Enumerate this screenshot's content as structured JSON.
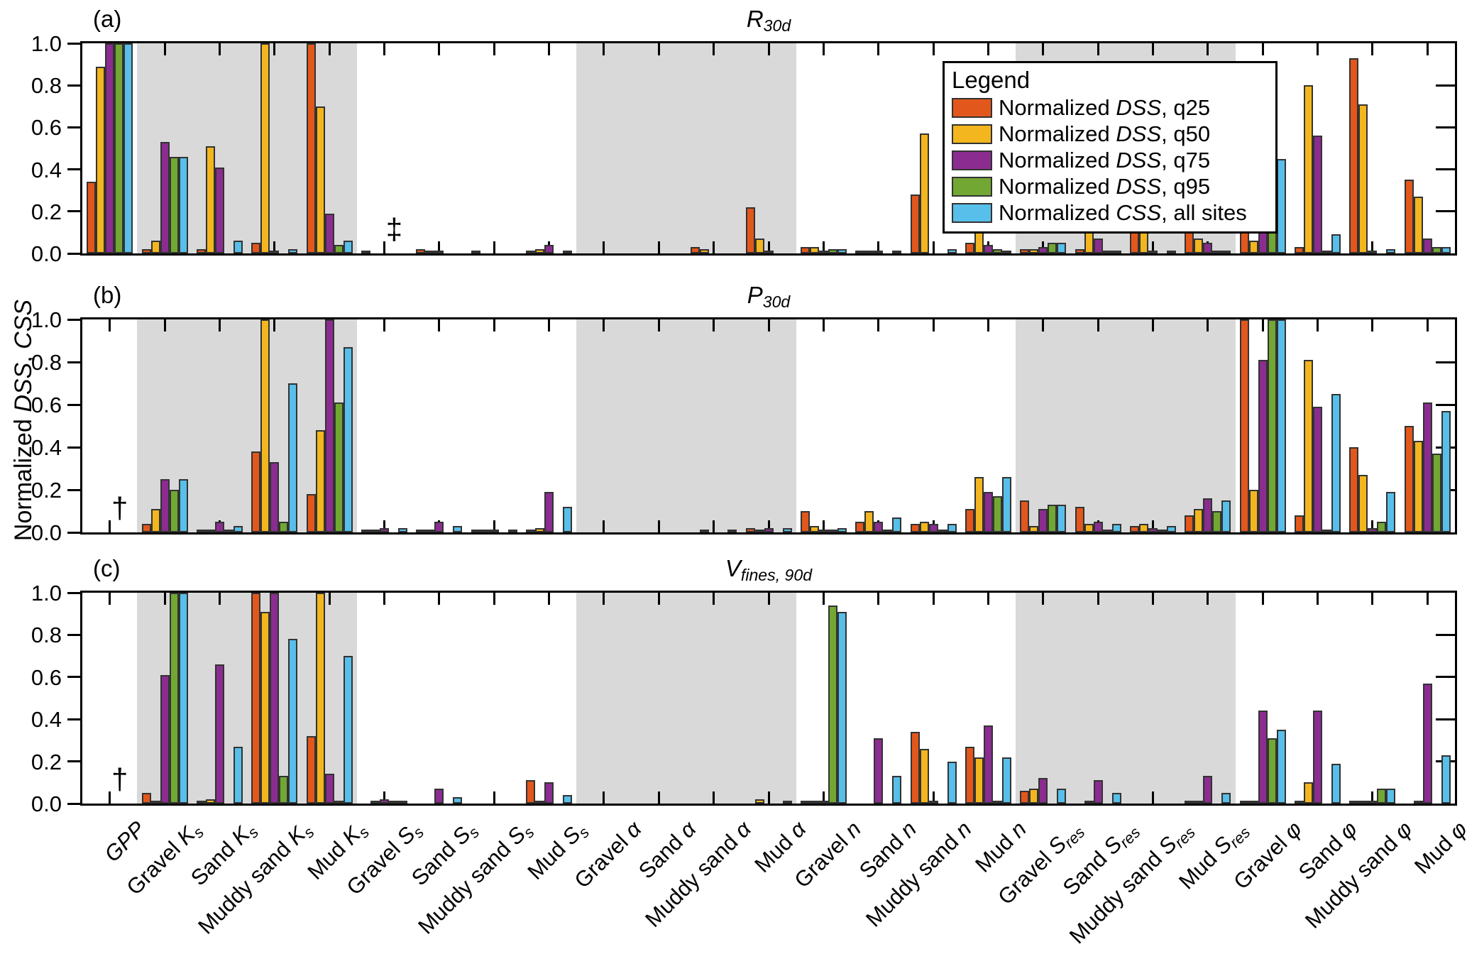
{
  "legend": {
    "title": "Legend"
  },
  "chart_data": {
    "type": "bar",
    "ylabel_parts": [
      {
        "text": "Normalized ",
        "italic": false
      },
      {
        "text": "DSS",
        "italic": true
      },
      {
        "text": ", ",
        "italic": false
      },
      {
        "text": "CSS",
        "italic": true
      }
    ],
    "ylim": [
      0,
      1
    ],
    "yticks": [
      0,
      0.2,
      0.4,
      0.6,
      0.8,
      1.0
    ],
    "ytick_labels": [
      "0.0",
      "0.2",
      "0.4",
      "0.6",
      "0.8",
      "1.0"
    ],
    "grid": false,
    "legend_position": "upper right inside panel (a)",
    "categories": [
      {
        "prefix": "",
        "symbol": "GPP",
        "subscript": ""
      },
      {
        "prefix": "Gravel ",
        "symbol": "K",
        "subscript": "s"
      },
      {
        "prefix": "Sand ",
        "symbol": "K",
        "subscript": "s"
      },
      {
        "prefix": "Muddy sand ",
        "symbol": "K",
        "subscript": "s"
      },
      {
        "prefix": "Mud ",
        "symbol": "K",
        "subscript": "s"
      },
      {
        "prefix": "Gravel ",
        "symbol": "S",
        "subscript": "s"
      },
      {
        "prefix": "Sand ",
        "symbol": "S",
        "subscript": "s"
      },
      {
        "prefix": "Muddy sand ",
        "symbol": "S",
        "subscript": "s"
      },
      {
        "prefix": "Mud ",
        "symbol": "S",
        "subscript": "s"
      },
      {
        "prefix": "Gravel ",
        "symbol": "α",
        "subscript": ""
      },
      {
        "prefix": "Sand ",
        "symbol": "α",
        "subscript": ""
      },
      {
        "prefix": "Muddy sand ",
        "symbol": "α",
        "subscript": ""
      },
      {
        "prefix": "Mud ",
        "symbol": "α",
        "subscript": ""
      },
      {
        "prefix": "Gravel ",
        "symbol": "n",
        "subscript": ""
      },
      {
        "prefix": "Sand ",
        "symbol": "n",
        "subscript": ""
      },
      {
        "prefix": "Muddy sand ",
        "symbol": "n",
        "subscript": ""
      },
      {
        "prefix": "Mud ",
        "symbol": "n",
        "subscript": ""
      },
      {
        "prefix": "Gravel ",
        "symbol": "S",
        "subscript": "res"
      },
      {
        "prefix": "Sand ",
        "symbol": "S",
        "subscript": "res"
      },
      {
        "prefix": "Muddy sand ",
        "symbol": "S",
        "subscript": "res"
      },
      {
        "prefix": "Mud ",
        "symbol": "S",
        "subscript": "res"
      },
      {
        "prefix": "Gravel ",
        "symbol": "φ",
        "subscript": ""
      },
      {
        "prefix": "Sand ",
        "symbol": "φ",
        "subscript": ""
      },
      {
        "prefix": "Muddy sand ",
        "symbol": "φ",
        "subscript": ""
      },
      {
        "prefix": "Mud ",
        "symbol": "φ",
        "subscript": ""
      }
    ],
    "shaded_category_ranges": [
      [
        1,
        4
      ],
      [
        9,
        12
      ],
      [
        17,
        20
      ]
    ],
    "series_defs": [
      {
        "key": "q25",
        "color": "#E2571B",
        "legend_prefix": "Normalized ",
        "legend_symbol": "DSS",
        "legend_suffix": ", q25"
      },
      {
        "key": "q50",
        "color": "#F3B61E",
        "legend_prefix": "Normalized ",
        "legend_symbol": "DSS",
        "legend_suffix": ", q50"
      },
      {
        "key": "q75",
        "color": "#8B2C90",
        "legend_prefix": "Normalized ",
        "legend_symbol": "DSS",
        "legend_suffix": ", q75"
      },
      {
        "key": "q95",
        "color": "#72A733",
        "legend_prefix": "Normalized ",
        "legend_symbol": "DSS",
        "legend_suffix": ", q95"
      },
      {
        "key": "css",
        "color": "#57BFE9",
        "legend_prefix": "Normalized ",
        "legend_symbol": "CSS",
        "legend_suffix": ", all sites"
      }
    ],
    "panels": [
      {
        "label": "(a)",
        "title": {
          "symbol": "R",
          "subscript": "30d"
        },
        "annotations": [
          {
            "category": 5,
            "text": "‡"
          }
        ],
        "series": {
          "q25": [
            0.34,
            0.02,
            0.02,
            0.05,
            1.0,
            0.01,
            0.02,
            0.01,
            0.01,
            0,
            0,
            0.03,
            0.22,
            0.03,
            0.01,
            0.28,
            0.05,
            0.02,
            0.02,
            0.11,
            0.1,
            0.15,
            0.03,
            0.93,
            0.35
          ],
          "q50": [
            0.89,
            0.06,
            0.51,
            1.0,
            0.7,
            0,
            0.01,
            0,
            0.02,
            0,
            0,
            0.02,
            0.07,
            0.03,
            0.01,
            0.57,
            0.12,
            0.02,
            0.1,
            0.11,
            0.07,
            0.06,
            0.8,
            0.71,
            0.27
          ],
          "q75": [
            1.0,
            0.53,
            0.41,
            0.01,
            0.19,
            0,
            0.01,
            0,
            0.04,
            0,
            0,
            0,
            0.01,
            0.01,
            0.01,
            0,
            0.04,
            0.03,
            0.07,
            0.01,
            0.05,
            0.22,
            0.56,
            0.01,
            0.07
          ],
          "q95": [
            1.0,
            0.46,
            0,
            0,
            0.04,
            0,
            0,
            0,
            0,
            0,
            0,
            0,
            0,
            0.02,
            0,
            0,
            0.02,
            0.05,
            0.01,
            0,
            0.01,
            0.46,
            0.01,
            0,
            0.03
          ],
          "css": [
            1.0,
            0.46,
            0.06,
            0.02,
            0.06,
            0,
            0,
            0,
            0.01,
            0,
            0,
            0,
            0,
            0.02,
            0.01,
            0.02,
            0.01,
            0.05,
            0.01,
            0.01,
            0.01,
            0.45,
            0.09,
            0.02,
            0.03
          ]
        }
      },
      {
        "label": "(b)",
        "title": {
          "symbol": "P",
          "subscript": "30d"
        },
        "annotations": [
          {
            "category": 0,
            "text": "†"
          }
        ],
        "series": {
          "q25": [
            0,
            0.04,
            0.01,
            0.38,
            0.18,
            0.01,
            0.01,
            0.01,
            0.01,
            0,
            0,
            0,
            0.02,
            0.1,
            0.05,
            0.04,
            0.11,
            0.15,
            0.12,
            0.03,
            0.08,
            1.0,
            0.08,
            0.4,
            0.5
          ],
          "q50": [
            0,
            0.11,
            0.01,
            1.0,
            0.48,
            0.01,
            0.01,
            0.01,
            0.02,
            0,
            0,
            0.01,
            0.01,
            0.03,
            0.1,
            0.05,
            0.26,
            0.03,
            0.04,
            0.04,
            0.11,
            0.2,
            0.81,
            0.27,
            0.43
          ],
          "q75": [
            0,
            0.25,
            0.05,
            0.33,
            1.0,
            0.02,
            0.05,
            0.01,
            0.19,
            0,
            0,
            0,
            0.02,
            0.01,
            0.05,
            0.04,
            0.19,
            0.11,
            0.05,
            0.02,
            0.16,
            0.81,
            0.59,
            0.02,
            0.61
          ],
          "q95": [
            0,
            0.2,
            0.01,
            0.05,
            0.61,
            0,
            0,
            0,
            0,
            0,
            0,
            0,
            0,
            0.01,
            0.01,
            0.01,
            0.17,
            0.13,
            0.01,
            0.01,
            0.1,
            1.0,
            0.01,
            0.05,
            0.37
          ],
          "css": [
            0,
            0.25,
            0.03,
            0.7,
            0.87,
            0.02,
            0.03,
            0.01,
            0.12,
            0,
            0,
            0.01,
            0.02,
            0.02,
            0.07,
            0.04,
            0.26,
            0.13,
            0.04,
            0.03,
            0.15,
            1.0,
            0.65,
            0.19,
            0.57
          ]
        }
      },
      {
        "label": "(c)",
        "title": {
          "symbol": "V",
          "subscript": "fines, 90d"
        },
        "annotations": [
          {
            "category": 0,
            "text": "†"
          }
        ],
        "series": {
          "q25": [
            0,
            0.05,
            0.01,
            1.0,
            0.32,
            0,
            0,
            0,
            0.11,
            0,
            0,
            0,
            0,
            0.01,
            0,
            0.34,
            0.27,
            0.06,
            0,
            0,
            0.01,
            0.01,
            0.01,
            0.01,
            0
          ],
          "q50": [
            0,
            0.01,
            0.02,
            0.91,
            1.0,
            0.01,
            0,
            0,
            0.01,
            0,
            0,
            0,
            0.02,
            0.01,
            0,
            0.26,
            0.22,
            0.07,
            0.01,
            0,
            0.01,
            0.01,
            0.1,
            0.01,
            0.01
          ],
          "q75": [
            0,
            0.61,
            0.66,
            1.0,
            0.14,
            0.02,
            0.07,
            0,
            0.1,
            0,
            0,
            0,
            0,
            0.01,
            0.31,
            0.01,
            0.37,
            0.12,
            0.11,
            0,
            0.13,
            0.44,
            0.44,
            0.01,
            0.57
          ],
          "q95": [
            0,
            1.0,
            0,
            0.13,
            0.01,
            0.01,
            0,
            0,
            0,
            0,
            0,
            0,
            0,
            0.94,
            0,
            0,
            0.01,
            0,
            0,
            0,
            0,
            0.31,
            0,
            0.07,
            0
          ],
          "css": [
            0,
            1.0,
            0.27,
            0.78,
            0.7,
            0.01,
            0.03,
            0,
            0.04,
            0,
            0,
            0,
            0.01,
            0.91,
            0.13,
            0.2,
            0.22,
            0.07,
            0.05,
            0,
            0.05,
            0.35,
            0.19,
            0.07,
            0.23
          ]
        }
      }
    ]
  }
}
